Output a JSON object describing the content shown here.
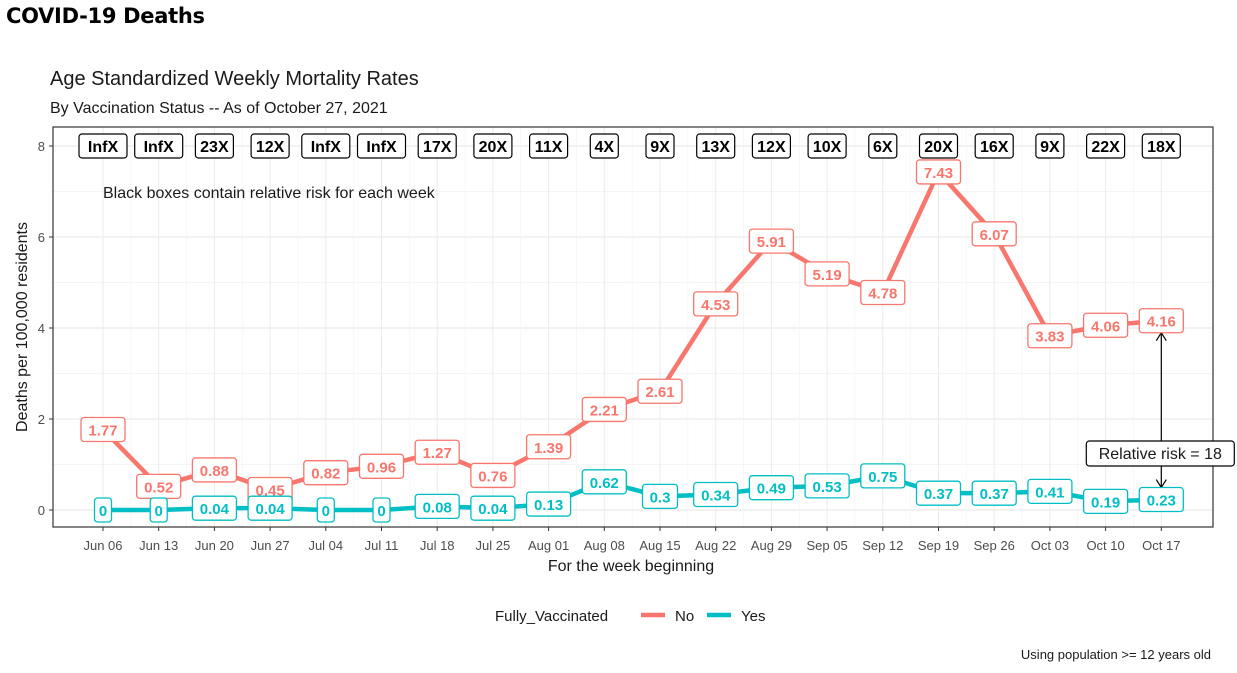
{
  "page": {
    "heading": "COVID-19 Deaths"
  },
  "chart_data": {
    "type": "line",
    "title": "Age Standardized Weekly Mortality Rates",
    "subtitle": "By Vaccination Status -- As of October 27, 2021",
    "xlabel": "For the week beginning",
    "ylabel": "Deaths per 100,000 residents",
    "ylim": [
      0,
      8
    ],
    "yticks": [
      0,
      2,
      4,
      6,
      8
    ],
    "grid": true,
    "categories": [
      "Jun 06",
      "Jun 13",
      "Jun 20",
      "Jun 27",
      "Jul 04",
      "Jul 11",
      "Jul 18",
      "Jul 25",
      "Aug 01",
      "Aug 08",
      "Aug 15",
      "Aug 22",
      "Aug 29",
      "Sep 05",
      "Sep 12",
      "Sep 19",
      "Sep 26",
      "Oct 03",
      "Oct 10",
      "Oct 17"
    ],
    "series": [
      {
        "name": "No",
        "color": "#F8766D",
        "values": [
          1.77,
          0.52,
          0.88,
          0.45,
          0.82,
          0.96,
          1.27,
          0.76,
          1.39,
          2.21,
          2.61,
          4.53,
          5.91,
          5.19,
          4.78,
          7.43,
          6.07,
          3.83,
          4.06,
          4.16
        ]
      },
      {
        "name": "Yes",
        "color": "#00BFC4",
        "values": [
          0,
          0,
          0.04,
          0.04,
          0,
          0,
          0.08,
          0.04,
          0.13,
          0.62,
          0.3,
          0.34,
          0.49,
          0.53,
          0.75,
          0.37,
          0.37,
          0.41,
          0.19,
          0.23
        ]
      }
    ],
    "relative_risk": [
      "InfX",
      "InfX",
      "23X",
      "12X",
      "InfX",
      "InfX",
      "17X",
      "20X",
      "11X",
      "4X",
      "9X",
      "13X",
      "12X",
      "10X",
      "6X",
      "20X",
      "16X",
      "9X",
      "22X",
      "18X"
    ],
    "note": "Black boxes contain relative risk for each week",
    "annotation": {
      "text": "Relative risk = 18",
      "week": "Oct 17"
    },
    "legend": {
      "title": "Fully_Vaccinated",
      "position": "bottom",
      "items": [
        "No",
        "Yes"
      ]
    },
    "caption": "Using population >= 12 years old"
  }
}
